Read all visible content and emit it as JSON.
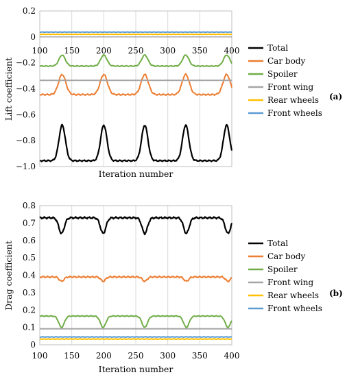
{
  "chart_data": [
    {
      "type": "line",
      "panel_label": "(a)",
      "xlabel": "Iteration number",
      "ylabel": "Lift coefficient",
      "xlim": [
        100,
        400
      ],
      "ylim": [
        -1.0,
        0.2
      ],
      "xticks": [
        "100",
        "150",
        "200",
        "250",
        "300",
        "350",
        "400"
      ],
      "yticks": [
        "0.2",
        "0",
        "−0.2",
        "−0.4",
        "−0.6",
        "−0.8",
        "−1.0"
      ],
      "grid": "vertical",
      "legend": "right",
      "peaks": [
        135,
        200,
        264,
        328,
        392
      ],
      "series": [
        {
          "name": "Total",
          "color": "#000000",
          "base": -0.955,
          "peak_value": -0.68,
          "peak_width": 7,
          "dip_value": null,
          "jitter": 0.006
        },
        {
          "name": "Car body",
          "color": "#ed7d31",
          "base": -0.445,
          "peak_value": -0.29,
          "peak_width": 8,
          "dip_value": null,
          "jitter": 0.006
        },
        {
          "name": "Spoiler",
          "color": "#70ad47",
          "base": -0.225,
          "peak_value": -0.14,
          "peak_width": 7,
          "dip_value": null,
          "jitter": 0.004
        },
        {
          "name": "Front wing",
          "color": "#a5a5a5",
          "base": -0.335,
          "peak_value": null,
          "peak_width": 7,
          "dip_value": null,
          "jitter": 0.0005
        },
        {
          "name": "Rear wheels",
          "color": "#ffc000",
          "base": 0.02,
          "peak_value": null,
          "peak_width": 7,
          "dip_value": null,
          "jitter": 0.002
        },
        {
          "name": "Front wheels",
          "color": "#5b9bd5",
          "base": 0.037,
          "peak_value": null,
          "peak_width": 7,
          "dip_value": null,
          "jitter": 0.002
        }
      ]
    },
    {
      "type": "line",
      "panel_label": "(b)",
      "xlabel": "Iteration number",
      "ylabel": "Drag coefficient",
      "xlim": [
        100,
        400
      ],
      "ylim": [
        0,
        0.8
      ],
      "xticks": [
        "100",
        "150",
        "200",
        "250",
        "300",
        "350",
        "400"
      ],
      "yticks": [
        "0.8",
        "0.7",
        "0.6",
        "0.5",
        "0.4",
        "0.3",
        "0.2",
        "0.1",
        "0"
      ],
      "grid": "vertical",
      "legend": "right",
      "peaks": [
        134,
        199,
        264,
        329,
        394
      ],
      "series": [
        {
          "name": "Total",
          "color": "#000000",
          "base": 0.73,
          "peak_value": null,
          "peak_width": 6,
          "dip_value": 0.64,
          "jitter": 0.006
        },
        {
          "name": "Car body",
          "color": "#ed7d31",
          "base": 0.39,
          "peak_value": null,
          "peak_width": 5,
          "dip_value": 0.365,
          "jitter": 0.005
        },
        {
          "name": "Spoiler",
          "color": "#70ad47",
          "base": 0.165,
          "peak_value": null,
          "peak_width": 6,
          "dip_value": 0.1,
          "jitter": 0.003
        },
        {
          "name": "Front wing",
          "color": "#a5a5a5",
          "base": 0.092,
          "peak_value": null,
          "peak_width": 6,
          "dip_value": null,
          "jitter": 0.0005
        },
        {
          "name": "Rear wheels",
          "color": "#ffc000",
          "base": 0.033,
          "peak_value": null,
          "peak_width": 6,
          "dip_value": null,
          "jitter": 0.002
        },
        {
          "name": "Front wheels",
          "color": "#5b9bd5",
          "base": 0.045,
          "peak_value": null,
          "peak_width": 6,
          "dip_value": null,
          "jitter": 0.002
        }
      ]
    }
  ]
}
